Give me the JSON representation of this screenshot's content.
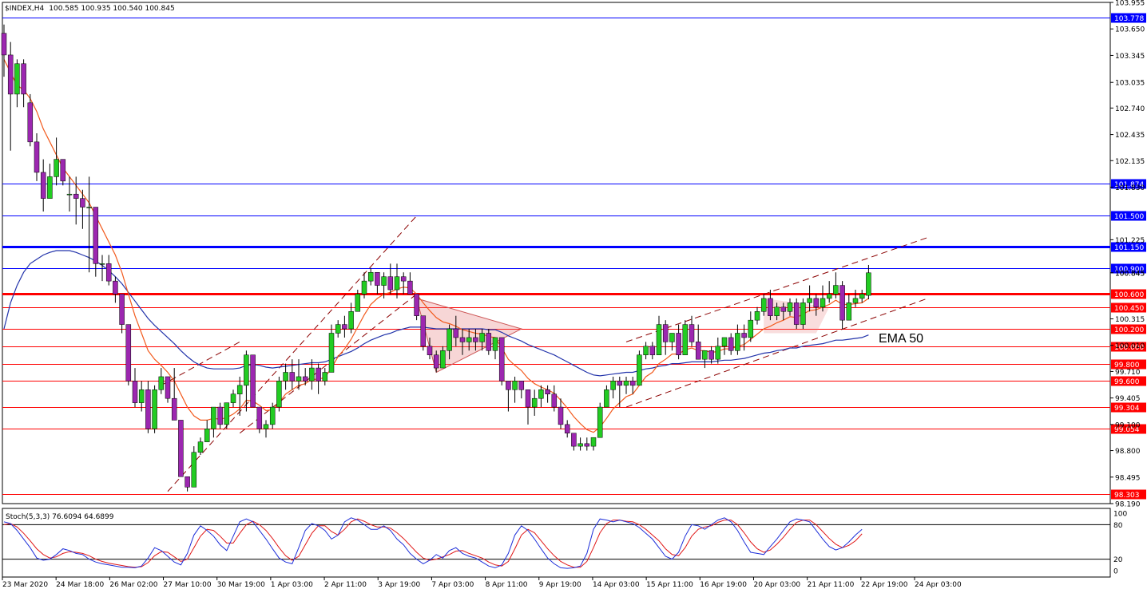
{
  "header": {
    "symbol": "$INDEX,H4",
    "ohlc": "100.585 100.935 100.540 100.845"
  },
  "indicator": {
    "label": "Stoch(5,3,3) 76.6094 64.6899",
    "levels": [
      "100",
      "80",
      "20",
      "0"
    ]
  },
  "annotation": {
    "ema_label": "EMA 50"
  },
  "colors": {
    "bull": "#22cc22",
    "bear": "#9c27b0",
    "ema_fast": "#f25a1d",
    "ema_slow": "#2233aa",
    "blue_level": "#0000ff",
    "red_level": "#ff0000",
    "stoch_main": "#1e2fd9",
    "stoch_signal": "#e01818"
  },
  "chart_data": {
    "type": "candlestick",
    "y_range": [
      98.19,
      103.955
    ],
    "y_ticks": [
      "103.955",
      "103.650",
      "103.345",
      "103.035",
      "102.740",
      "102.435",
      "102.135",
      "101.830",
      "101.225",
      "100.845",
      "100.315",
      "100.010",
      "99.710",
      "99.405",
      "99.100",
      "98.800",
      "98.495",
      "98.190"
    ],
    "x_labels": [
      "23 Mar 2020",
      "24 Mar 18:00",
      "26 Mar 02:00",
      "27 Mar 10:00",
      "30 Mar 19:00",
      "1 Apr 03:00",
      "2 Apr 11:00",
      "3 Apr 19:00",
      "7 Apr 03:00",
      "8 Apr 11:00",
      "9 Apr 19:00",
      "14 Apr 03:00",
      "15 Apr 11:00",
      "16 Apr 19:00",
      "20 Apr 03:00",
      "21 Apr 11:00",
      "22 Apr 19:00",
      "24 Apr 03:00"
    ],
    "current_price": "100.845",
    "horizontal_levels": [
      {
        "value": "103.778",
        "color": "blue"
      },
      {
        "value": "101.874",
        "color": "blue"
      },
      {
        "value": "101.500",
        "color": "blue"
      },
      {
        "value": "101.150",
        "color": "blue"
      },
      {
        "value": "100.900",
        "color": "blue"
      },
      {
        "value": "100.600",
        "color": "red"
      },
      {
        "value": "100.450",
        "color": "red"
      },
      {
        "value": "100.200",
        "color": "red"
      },
      {
        "value": "100.000",
        "color": "red"
      },
      {
        "value": "99.800",
        "color": "red"
      },
      {
        "value": "99.600",
        "color": "red"
      },
      {
        "value": "99.304",
        "color": "red"
      },
      {
        "value": "99.054",
        "color": "red"
      },
      {
        "value": "98.303",
        "color": "red"
      }
    ],
    "candles": [
      [
        103.6,
        103.7,
        103.1,
        103.35
      ],
      [
        103.35,
        103.5,
        102.25,
        102.9
      ],
      [
        102.9,
        103.3,
        102.75,
        103.25
      ],
      [
        103.25,
        103.3,
        102.75,
        102.9
      ],
      [
        102.8,
        102.9,
        102.3,
        102.35
      ],
      [
        102.35,
        102.45,
        101.9,
        102.0
      ],
      [
        102.0,
        102.15,
        101.55,
        101.7
      ],
      [
        101.7,
        102.1,
        101.7,
        101.95
      ],
      [
        101.95,
        102.4,
        101.85,
        102.15
      ],
      [
        102.15,
        102.15,
        101.85,
        101.9
      ],
      [
        101.75,
        101.95,
        101.55,
        101.75
      ],
      [
        101.75,
        101.95,
        101.4,
        101.7
      ],
      [
        101.7,
        101.8,
        101.35,
        101.6
      ],
      [
        101.6,
        101.95,
        100.85,
        101.6
      ],
      [
        101.6,
        101.6,
        100.8,
        100.95
      ],
      [
        100.95,
        101.05,
        100.75,
        100.95
      ],
      [
        100.95,
        101.05,
        100.7,
        100.75
      ],
      [
        100.75,
        100.8,
        100.5,
        100.6
      ],
      [
        100.6,
        100.6,
        100.15,
        100.25
      ],
      [
        100.25,
        100.25,
        99.55,
        99.6
      ],
      [
        99.6,
        99.75,
        99.3,
        99.35
      ],
      [
        99.35,
        99.6,
        99.25,
        99.5
      ],
      [
        99.5,
        99.6,
        99.0,
        99.05
      ],
      [
        99.05,
        99.55,
        99.0,
        99.5
      ],
      [
        99.5,
        99.75,
        99.45,
        99.65
      ],
      [
        99.65,
        99.65,
        99.35,
        99.4
      ],
      [
        99.4,
        99.75,
        99.15,
        99.15
      ],
      [
        99.15,
        99.15,
        98.5,
        98.5
      ],
      [
        98.5,
        98.5,
        98.33,
        98.38
      ],
      [
        98.38,
        98.85,
        98.38,
        98.78
      ],
      [
        98.78,
        98.95,
        98.75,
        98.9
      ],
      [
        98.9,
        99.15,
        98.9,
        99.05
      ],
      [
        99.05,
        99.3,
        98.95,
        99.3
      ],
      [
        99.3,
        99.35,
        99.05,
        99.1
      ],
      [
        99.1,
        99.35,
        99.05,
        99.35
      ],
      [
        99.35,
        99.5,
        99.3,
        99.45
      ],
      [
        99.45,
        99.65,
        99.2,
        99.55
      ],
      [
        99.55,
        99.95,
        99.25,
        99.9
      ],
      [
        99.9,
        99.9,
        99.3,
        99.3
      ],
      [
        99.3,
        99.3,
        99.0,
        99.05
      ],
      [
        99.05,
        99.15,
        98.95,
        99.1
      ],
      [
        99.1,
        99.35,
        99.05,
        99.3
      ],
      [
        99.3,
        99.65,
        99.25,
        99.6
      ],
      [
        99.6,
        99.8,
        99.5,
        99.7
      ],
      [
        99.7,
        99.85,
        99.5,
        99.6
      ],
      [
        99.6,
        99.85,
        99.5,
        99.65
      ],
      [
        99.65,
        99.75,
        99.55,
        99.6
      ],
      [
        99.6,
        99.85,
        99.5,
        99.75
      ],
      [
        99.75,
        99.8,
        99.45,
        99.6
      ],
      [
        99.6,
        99.75,
        99.55,
        99.7
      ],
      [
        99.7,
        100.25,
        99.7,
        100.15
      ],
      [
        100.15,
        100.3,
        100.1,
        100.25
      ],
      [
        100.25,
        100.35,
        100.1,
        100.2
      ],
      [
        100.2,
        100.5,
        100.15,
        100.4
      ],
      [
        100.4,
        100.65,
        100.4,
        100.6
      ],
      [
        100.6,
        100.85,
        100.55,
        100.75
      ],
      [
        100.75,
        100.9,
        100.7,
        100.85
      ],
      [
        100.85,
        100.85,
        100.6,
        100.7
      ],
      [
        100.7,
        100.85,
        100.55,
        100.8
      ],
      [
        100.8,
        100.95,
        100.6,
        100.65
      ],
      [
        100.65,
        100.95,
        100.55,
        100.8
      ],
      [
        100.8,
        100.85,
        100.6,
        100.75
      ],
      [
        100.75,
        100.85,
        100.6,
        100.6
      ],
      [
        100.6,
        100.6,
        100.3,
        100.35
      ],
      [
        100.35,
        100.35,
        99.95,
        100.0
      ],
      [
        100.0,
        100.1,
        99.85,
        99.9
      ],
      [
        99.9,
        99.95,
        99.7,
        99.75
      ],
      [
        99.75,
        100.0,
        99.75,
        99.95
      ],
      [
        99.95,
        100.25,
        99.85,
        100.2
      ],
      [
        100.2,
        100.35,
        100.0,
        100.1
      ],
      [
        100.1,
        100.2,
        99.9,
        100.05
      ],
      [
        100.05,
        100.2,
        99.95,
        100.1
      ],
      [
        100.1,
        100.2,
        99.95,
        100.05
      ],
      [
        100.05,
        100.2,
        99.95,
        100.15
      ],
      [
        100.15,
        100.2,
        99.9,
        99.95
      ],
      [
        99.95,
        100.1,
        99.85,
        100.1
      ],
      [
        100.1,
        100.1,
        99.55,
        99.6
      ],
      [
        99.6,
        99.6,
        99.25,
        99.5
      ],
      [
        99.5,
        99.65,
        99.35,
        99.6
      ],
      [
        99.6,
        99.6,
        99.4,
        99.5
      ],
      [
        99.5,
        99.5,
        99.1,
        99.3
      ],
      [
        99.3,
        99.5,
        99.2,
        99.4
      ],
      [
        99.4,
        99.55,
        99.3,
        99.5
      ],
      [
        99.5,
        99.55,
        99.35,
        99.45
      ],
      [
        99.45,
        99.55,
        99.25,
        99.3
      ],
      [
        99.3,
        99.4,
        99.05,
        99.1
      ],
      [
        99.1,
        99.15,
        98.95,
        99.0
      ],
      [
        99.0,
        99.0,
        98.8,
        98.85
      ],
      [
        98.85,
        98.95,
        98.8,
        98.88
      ],
      [
        98.88,
        98.95,
        98.8,
        98.85
      ],
      [
        98.85,
        98.95,
        98.8,
        98.95
      ],
      [
        98.95,
        99.35,
        98.95,
        99.3
      ],
      [
        99.3,
        99.55,
        99.3,
        99.5
      ],
      [
        99.5,
        99.65,
        99.4,
        99.6
      ],
      [
        99.6,
        99.65,
        99.3,
        99.55
      ],
      [
        99.55,
        99.65,
        99.45,
        99.6
      ],
      [
        99.6,
        99.65,
        99.45,
        99.55
      ],
      [
        99.55,
        99.95,
        99.55,
        99.9
      ],
      [
        99.9,
        100.05,
        99.85,
        100.0
      ],
      [
        100.0,
        100.05,
        99.85,
        99.9
      ],
      [
        99.9,
        100.35,
        99.9,
        100.25
      ],
      [
        100.25,
        100.3,
        99.9,
        100.05
      ],
      [
        100.05,
        100.15,
        99.95,
        100.15
      ],
      [
        100.15,
        100.25,
        99.85,
        99.9
      ],
      [
        99.9,
        100.3,
        99.9,
        100.25
      ],
      [
        100.25,
        100.35,
        100.0,
        100.05
      ],
      [
        100.05,
        100.25,
        99.85,
        99.85
      ],
      [
        99.85,
        99.95,
        99.75,
        99.95
      ],
      [
        99.95,
        100.0,
        99.8,
        99.85
      ],
      [
        99.85,
        100.1,
        99.8,
        100.0
      ],
      [
        100.0,
        100.1,
        99.9,
        100.1
      ],
      [
        100.1,
        100.15,
        99.9,
        99.95
      ],
      [
        99.95,
        100.25,
        99.9,
        100.15
      ],
      [
        100.15,
        100.25,
        99.95,
        100.1
      ],
      [
        100.1,
        100.4,
        100.05,
        100.3
      ],
      [
        100.3,
        100.45,
        100.25,
        100.4
      ],
      [
        100.4,
        100.6,
        100.35,
        100.55
      ],
      [
        100.55,
        100.65,
        100.3,
        100.35
      ],
      [
        100.35,
        100.5,
        100.3,
        100.45
      ],
      [
        100.45,
        100.5,
        100.3,
        100.4
      ],
      [
        100.4,
        100.55,
        100.35,
        100.5
      ],
      [
        100.5,
        100.55,
        100.2,
        100.25
      ],
      [
        100.25,
        100.55,
        100.2,
        100.5
      ],
      [
        100.5,
        100.7,
        100.4,
        100.55
      ],
      [
        100.55,
        100.6,
        100.35,
        100.45
      ],
      [
        100.45,
        100.7,
        100.4,
        100.55
      ],
      [
        100.55,
        100.75,
        100.5,
        100.6
      ],
      [
        100.6,
        100.85,
        100.55,
        100.7
      ],
      [
        100.7,
        100.75,
        100.2,
        100.3
      ],
      [
        100.3,
        100.6,
        100.3,
        100.5
      ],
      [
        100.5,
        100.65,
        100.45,
        100.55
      ],
      [
        100.55,
        100.65,
        100.5,
        100.6
      ],
      [
        100.585,
        100.935,
        100.54,
        100.845
      ]
    ],
    "ema_fast": [
      103.3,
      103.15,
      103.0,
      102.95,
      102.85,
      102.7,
      102.5,
      102.35,
      102.2,
      102.05,
      101.95,
      101.85,
      101.75,
      101.65,
      101.5,
      101.35,
      101.2,
      101.05,
      100.85,
      100.6,
      100.35,
      100.15,
      99.95,
      99.85,
      99.78,
      99.7,
      99.6,
      99.45,
      99.3,
      99.2,
      99.15,
      99.15,
      99.17,
      99.16,
      99.18,
      99.22,
      99.28,
      99.38,
      99.37,
      99.32,
      99.26,
      99.27,
      99.35,
      99.45,
      99.5,
      99.55,
      99.57,
      99.62,
      99.62,
      99.64,
      99.75,
      99.88,
      99.97,
      100.08,
      100.22,
      100.36,
      100.48,
      100.55,
      100.6,
      100.62,
      100.66,
      100.68,
      100.67,
      100.6,
      100.5,
      100.41,
      100.33,
      100.28,
      100.26,
      100.23,
      100.19,
      100.17,
      100.15,
      100.14,
      100.11,
      100.1,
      99.98,
      99.85,
      99.78,
      99.72,
      99.63,
      99.57,
      99.53,
      99.5,
      99.46,
      99.38,
      99.29,
      99.19,
      99.11,
      99.04,
      99.01,
      99.07,
      99.17,
      99.28,
      99.35,
      99.42,
      99.45,
      99.55,
      99.65,
      99.7,
      99.8,
      99.85,
      99.91,
      99.91,
      99.96,
      99.98,
      99.95,
      99.95,
      99.93,
      99.94,
      99.97,
      99.97,
      100.0,
      100.02,
      100.08,
      100.14,
      100.2,
      100.23,
      100.27,
      100.3,
      100.34,
      100.33,
      100.37,
      100.41,
      100.42,
      100.45,
      100.48,
      100.53,
      100.48,
      100.48,
      100.49,
      100.5,
      100.55
    ],
    "ema_slow": [
      100.2,
      100.5,
      100.7,
      100.85,
      100.95,
      101.0,
      101.05,
      101.08,
      101.1,
      101.1,
      101.1,
      101.08,
      101.05,
      101.02,
      100.98,
      100.93,
      100.87,
      100.8,
      100.72,
      100.62,
      100.52,
      100.42,
      100.32,
      100.24,
      100.17,
      100.1,
      100.03,
      99.95,
      99.88,
      99.82,
      99.78,
      99.75,
      99.74,
      99.74,
      99.74,
      99.74,
      99.75,
      99.78,
      99.79,
      99.78,
      99.76,
      99.75,
      99.76,
      99.77,
      99.78,
      99.79,
      99.8,
      99.81,
      99.81,
      99.82,
      99.85,
      99.88,
      99.91,
      99.94,
      99.98,
      100.03,
      100.07,
      100.1,
      100.13,
      100.15,
      100.18,
      100.2,
      100.22,
      100.22,
      100.22,
      100.21,
      100.2,
      100.2,
      100.2,
      100.2,
      100.2,
      100.2,
      100.2,
      100.2,
      100.19,
      100.19,
      100.16,
      100.12,
      100.09,
      100.06,
      100.02,
      99.99,
      99.96,
      99.93,
      99.9,
      99.86,
      99.82,
      99.78,
      99.74,
      99.7,
      99.67,
      99.66,
      99.67,
      99.68,
      99.69,
      99.7,
      99.7,
      99.72,
      99.74,
      99.75,
      99.77,
      99.78,
      99.8,
      99.8,
      99.81,
      99.82,
      99.82,
      99.82,
      99.82,
      99.83,
      99.84,
      99.84,
      99.85,
      99.86,
      99.88,
      99.9,
      99.92,
      99.93,
      99.95,
      99.96,
      99.98,
      99.98,
      100.0,
      100.01,
      100.02,
      100.03,
      100.05,
      100.07,
      100.07,
      100.08,
      100.09,
      100.1,
      100.13
    ],
    "stoch_main": [
      85,
      82,
      70,
      55,
      40,
      22,
      18,
      20,
      28,
      38,
      35,
      30,
      28,
      20,
      15,
      12,
      10,
      8,
      6,
      6,
      5,
      8,
      22,
      40,
      35,
      25,
      15,
      10,
      30,
      62,
      78,
      70,
      60,
      45,
      35,
      60,
      85,
      90,
      85,
      70,
      55,
      38,
      22,
      15,
      12,
      40,
      70,
      82,
      78,
      70,
      55,
      62,
      85,
      92,
      88,
      80,
      72,
      72,
      78,
      70,
      55,
      45,
      30,
      20,
      12,
      18,
      28,
      22,
      35,
      40,
      30,
      25,
      22,
      15,
      8,
      5,
      10,
      30,
      62,
      78,
      70,
      55,
      38,
      22,
      12,
      5,
      4,
      5,
      8,
      30,
      72,
      90,
      88,
      85,
      88,
      85,
      82,
      75,
      65,
      55,
      40,
      25,
      20,
      32,
      60,
      80,
      78,
      72,
      80,
      88,
      92,
      85,
      70,
      50,
      32,
      30,
      28,
      42,
      55,
      70,
      85,
      90,
      88,
      85,
      70,
      55,
      42,
      36,
      40,
      50,
      62,
      72
    ],
    "stoch_signal": [
      80,
      82,
      76,
      65,
      52,
      38,
      28,
      22,
      24,
      30,
      33,
      32,
      30,
      26,
      20,
      16,
      13,
      11,
      9,
      7,
      6,
      7,
      14,
      26,
      33,
      32,
      24,
      16,
      20,
      40,
      60,
      72,
      70,
      60,
      48,
      48,
      65,
      80,
      86,
      80,
      70,
      56,
      40,
      26,
      18,
      25,
      45,
      65,
      78,
      78,
      68,
      62,
      72,
      85,
      90,
      86,
      80,
      76,
      76,
      74,
      66,
      56,
      44,
      32,
      22,
      18,
      20,
      24,
      28,
      34,
      35,
      30,
      26,
      22,
      15,
      10,
      8,
      16,
      38,
      62,
      72,
      66,
      52,
      38,
      26,
      16,
      10,
      6,
      6,
      16,
      40,
      66,
      82,
      88,
      88,
      86,
      85,
      80,
      72,
      62,
      52,
      38,
      28,
      26,
      40,
      60,
      72,
      76,
      78,
      84,
      88,
      88,
      80,
      66,
      50,
      38,
      32,
      36,
      46,
      58,
      72,
      84,
      88,
      88,
      80,
      68,
      56,
      46,
      40,
      44,
      52,
      64
    ]
  }
}
